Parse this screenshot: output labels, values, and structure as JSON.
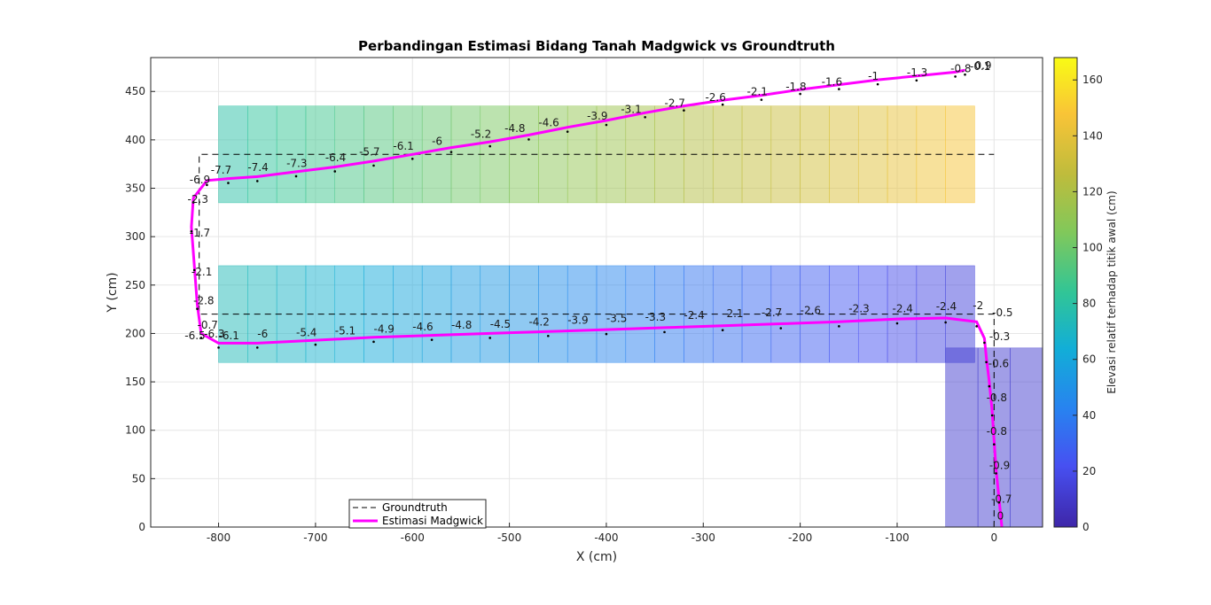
{
  "chart_data": {
    "type": "line",
    "title": "Perbandingan Estimasi Bidang Tanah Madgwick vs Groundtruth",
    "xlabel": "X (cm)",
    "ylabel": "Y (cm)",
    "xlim": [
      -870,
      50
    ],
    "ylim": [
      0,
      485
    ],
    "xticks": [
      -800,
      -700,
      -600,
      -500,
      -400,
      -300,
      -200,
      -100,
      0
    ],
    "yticks": [
      0,
      50,
      100,
      150,
      200,
      250,
      300,
      350,
      400,
      450
    ],
    "grid": true,
    "legend_position": "bottom-left",
    "colorbar": {
      "label": "Elevasi relatif terhadap titik awal (cm)",
      "range": [
        0,
        168
      ],
      "ticks": [
        0,
        20,
        40,
        60,
        80,
        100,
        120,
        140,
        160
      ],
      "colormap": "parula"
    },
    "series": [
      {
        "name": "Groundtruth",
        "style": "dashed",
        "color": "#000000",
        "points": [
          [
            0,
            0
          ],
          [
            0,
            220
          ],
          [
            -820,
            220
          ],
          [
            -820,
            385
          ],
          [
            0,
            385
          ]
        ]
      },
      {
        "name": "Estimasi Madgwick",
        "style": "solid",
        "color": "#ff00ff",
        "points": [
          [
            8,
            0
          ],
          [
            5,
            30
          ],
          [
            2,
            60
          ],
          [
            0,
            90
          ],
          [
            -2,
            120
          ],
          [
            -5,
            150
          ],
          [
            -8,
            175
          ],
          [
            -10,
            195
          ],
          [
            -18,
            212
          ],
          [
            -50,
            216
          ],
          [
            -100,
            215
          ],
          [
            -160,
            212
          ],
          [
            -220,
            210
          ],
          [
            -280,
            208
          ],
          [
            -340,
            206
          ],
          [
            -400,
            204
          ],
          [
            -460,
            202
          ],
          [
            -520,
            200
          ],
          [
            -580,
            198
          ],
          [
            -640,
            196
          ],
          [
            -700,
            193
          ],
          [
            -760,
            190
          ],
          [
            -800,
            190
          ],
          [
            -818,
            200
          ],
          [
            -822,
            230
          ],
          [
            -825,
            270
          ],
          [
            -828,
            310
          ],
          [
            -826,
            340
          ],
          [
            -812,
            358
          ],
          [
            -790,
            360
          ],
          [
            -760,
            362
          ],
          [
            -720,
            367
          ],
          [
            -680,
            372
          ],
          [
            -640,
            378
          ],
          [
            -600,
            385
          ],
          [
            -560,
            392
          ],
          [
            -520,
            398
          ],
          [
            -480,
            405
          ],
          [
            -440,
            413
          ],
          [
            -400,
            420
          ],
          [
            -360,
            428
          ],
          [
            -320,
            435
          ],
          [
            -280,
            441
          ],
          [
            -240,
            446
          ],
          [
            -200,
            452
          ],
          [
            -160,
            457
          ],
          [
            -120,
            462
          ],
          [
            -80,
            466
          ],
          [
            -40,
            470
          ],
          [
            -30,
            472
          ]
        ]
      }
    ],
    "elevation_bands": [
      {
        "x0": -800,
        "x1": -20,
        "y0": 335,
        "y1": 435,
        "elev_left": 78,
        "elev_right": 148
      },
      {
        "x0": -800,
        "x1": -20,
        "y0": 170,
        "y1": 270,
        "elev_left": 75,
        "elev_right": 14
      },
      {
        "x0": -50,
        "x1": 50,
        "y0": 0,
        "y1": 185,
        "elev_left": 12,
        "elev_right": 12
      }
    ],
    "point_labels": [
      {
        "x": 3,
        "y": 8,
        "text": "0"
      },
      {
        "x": -3,
        "y": 25,
        "text": "-0.7"
      },
      {
        "x": -5,
        "y": 60,
        "text": "-0.9"
      },
      {
        "x": -8,
        "y": 95,
        "text": "-0.8"
      },
      {
        "x": -8,
        "y": 130,
        "text": "-0.8"
      },
      {
        "x": -6,
        "y": 165,
        "text": "-0.6"
      },
      {
        "x": -5,
        "y": 193,
        "text": "-0.3"
      },
      {
        "x": -2,
        "y": 218,
        "text": "-0.5"
      },
      {
        "x": -22,
        "y": 225,
        "text": "-2"
      },
      {
        "x": -60,
        "y": 224,
        "text": "-2.4"
      },
      {
        "x": -105,
        "y": 222,
        "text": "-2.4"
      },
      {
        "x": -150,
        "y": 222,
        "text": "-2.3"
      },
      {
        "x": -200,
        "y": 220,
        "text": "-2.6"
      },
      {
        "x": -240,
        "y": 218,
        "text": "-2.7"
      },
      {
        "x": -280,
        "y": 217,
        "text": "-2.1"
      },
      {
        "x": -320,
        "y": 215,
        "text": "-2.4"
      },
      {
        "x": -360,
        "y": 213,
        "text": "-3.3"
      },
      {
        "x": -400,
        "y": 212,
        "text": "-3.5"
      },
      {
        "x": -440,
        "y": 210,
        "text": "-3.9"
      },
      {
        "x": -480,
        "y": 208,
        "text": "-4.2"
      },
      {
        "x": -520,
        "y": 206,
        "text": "-4.5"
      },
      {
        "x": -560,
        "y": 205,
        "text": "-4.8"
      },
      {
        "x": -600,
        "y": 203,
        "text": "-4.6"
      },
      {
        "x": -640,
        "y": 201,
        "text": "-4.9"
      },
      {
        "x": -680,
        "y": 199,
        "text": "-5.1"
      },
      {
        "x": -720,
        "y": 197,
        "text": "-5.4"
      },
      {
        "x": -760,
        "y": 196,
        "text": "-6"
      },
      {
        "x": -800,
        "y": 194,
        "text": "-6.1"
      },
      {
        "x": -835,
        "y": 194,
        "text": "-6.5"
      },
      {
        "x": -815,
        "y": 196,
        "text": "-6.3"
      },
      {
        "x": -822,
        "y": 205,
        "text": "-0.7"
      },
      {
        "x": -826,
        "y": 230,
        "text": "-2.8"
      },
      {
        "x": -828,
        "y": 260,
        "text": "-2.1"
      },
      {
        "x": -830,
        "y": 300,
        "text": "-1.7"
      },
      {
        "x": -832,
        "y": 335,
        "text": "-2.3"
      },
      {
        "x": -830,
        "y": 355,
        "text": "-6.9"
      },
      {
        "x": -808,
        "y": 365,
        "text": "-7.7"
      },
      {
        "x": -770,
        "y": 368,
        "text": "-7.4"
      },
      {
        "x": -730,
        "y": 372,
        "text": "-7.3"
      },
      {
        "x": -690,
        "y": 378,
        "text": "-6.4"
      },
      {
        "x": -655,
        "y": 384,
        "text": "-5.7"
      },
      {
        "x": -620,
        "y": 390,
        "text": "-6.1"
      },
      {
        "x": -580,
        "y": 395,
        "text": "-6"
      },
      {
        "x": -540,
        "y": 402,
        "text": "-5.2"
      },
      {
        "x": -505,
        "y": 408,
        "text": "-4.8"
      },
      {
        "x": -470,
        "y": 414,
        "text": "-4.6"
      },
      {
        "x": -420,
        "y": 421,
        "text": "-3.9"
      },
      {
        "x": -385,
        "y": 428,
        "text": "-3.1"
      },
      {
        "x": -340,
        "y": 434,
        "text": "-2.7"
      },
      {
        "x": -298,
        "y": 440,
        "text": "-2.6"
      },
      {
        "x": -255,
        "y": 446,
        "text": "-2.1"
      },
      {
        "x": -215,
        "y": 451,
        "text": "-1.8"
      },
      {
        "x": -178,
        "y": 456,
        "text": "-1.6"
      },
      {
        "x": -130,
        "y": 462,
        "text": "-1"
      },
      {
        "x": -90,
        "y": 466,
        "text": "-1.3"
      },
      {
        "x": -45,
        "y": 470,
        "text": "-0.8"
      },
      {
        "x": -25,
        "y": 472,
        "text": "-0.1"
      },
      {
        "x": -20,
        "y": 473,
        "text": "0.9"
      }
    ]
  }
}
